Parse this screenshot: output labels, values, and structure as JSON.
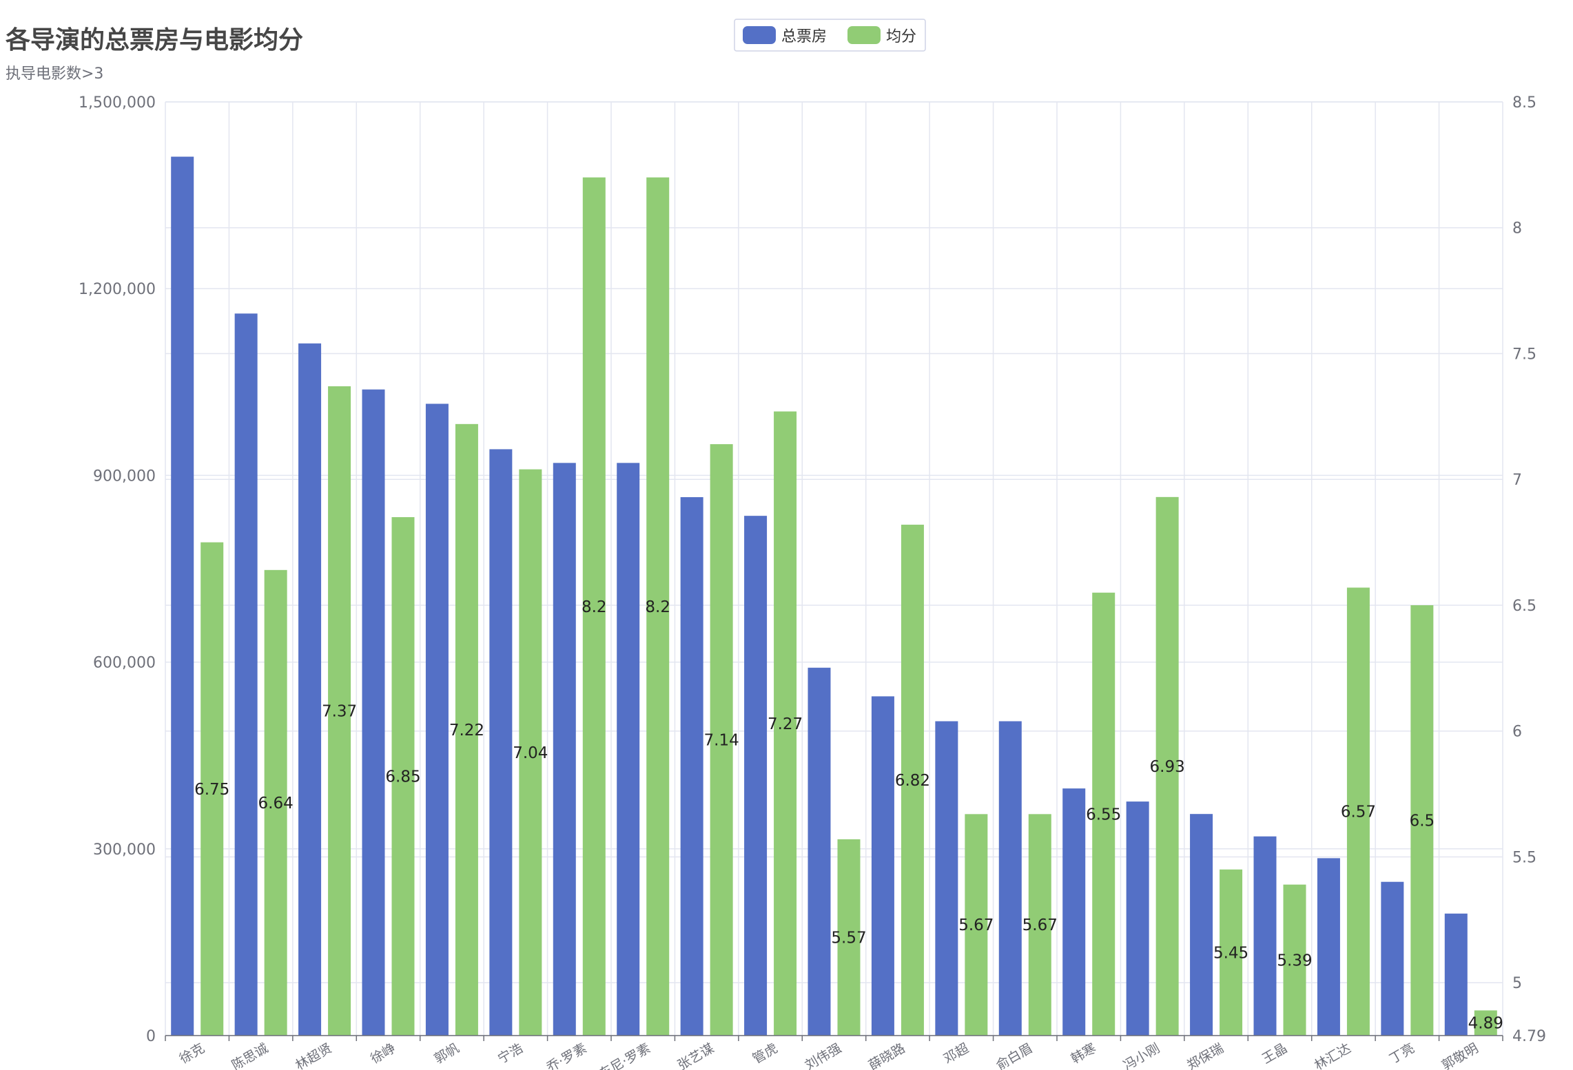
{
  "chart_data": {
    "type": "bar",
    "title": "各导演的总票房与电影均分",
    "subtitle": "执导电影数>3",
    "legend": {
      "placement": "top-center",
      "items": [
        {
          "name": "总票房",
          "color": "#5470c6",
          "icon": "rounded-rect-swatch"
        },
        {
          "name": "均分",
          "color": "#91cc75",
          "icon": "rounded-rect-swatch"
        }
      ]
    },
    "categories": [
      "徐克",
      "陈思诚",
      "林超贤",
      "徐峥",
      "郭帆",
      "宁浩",
      "乔·罗素",
      "安东尼·罗素",
      "张艺谋",
      "管虎",
      "刘伟强",
      "薛晓路",
      "邓超",
      "俞白眉",
      "韩寒",
      "冯小刚",
      "郑保瑞",
      "王晶",
      "林汇达",
      "丁亮",
      "郭敬明"
    ],
    "series": [
      {
        "name": "总票房",
        "axis": "left",
        "color": "#5470c6",
        "values": [
          1412000,
          1160000,
          1112000,
          1038000,
          1015000,
          942000,
          920000,
          920000,
          865000,
          835000,
          591000,
          545000,
          505000,
          505000,
          397000,
          376000,
          356000,
          320000,
          285000,
          247000,
          196000
        ]
      },
      {
        "name": "均分",
        "axis": "right",
        "color": "#91cc75",
        "show_labels": true,
        "values": [
          6.75,
          6.64,
          7.37,
          6.85,
          7.22,
          7.04,
          8.2,
          8.2,
          7.14,
          7.27,
          5.57,
          6.82,
          5.67,
          5.67,
          6.55,
          6.93,
          5.45,
          5.39,
          6.57,
          6.5,
          4.89
        ]
      }
    ],
    "y_left": {
      "ylim": [
        0,
        1500000
      ],
      "ticks": [
        "0",
        "300,000",
        "600,000",
        "900,000",
        "1,200,000",
        "1,500,000"
      ]
    },
    "y_right": {
      "ylim": [
        4.79,
        8.5
      ],
      "ticks": [
        "4.79",
        "5",
        "5.5",
        "6",
        "6.5",
        "7",
        "7.5",
        "8",
        "8.5"
      ]
    },
    "grid": true,
    "xlabel": "",
    "ylabel": ""
  }
}
